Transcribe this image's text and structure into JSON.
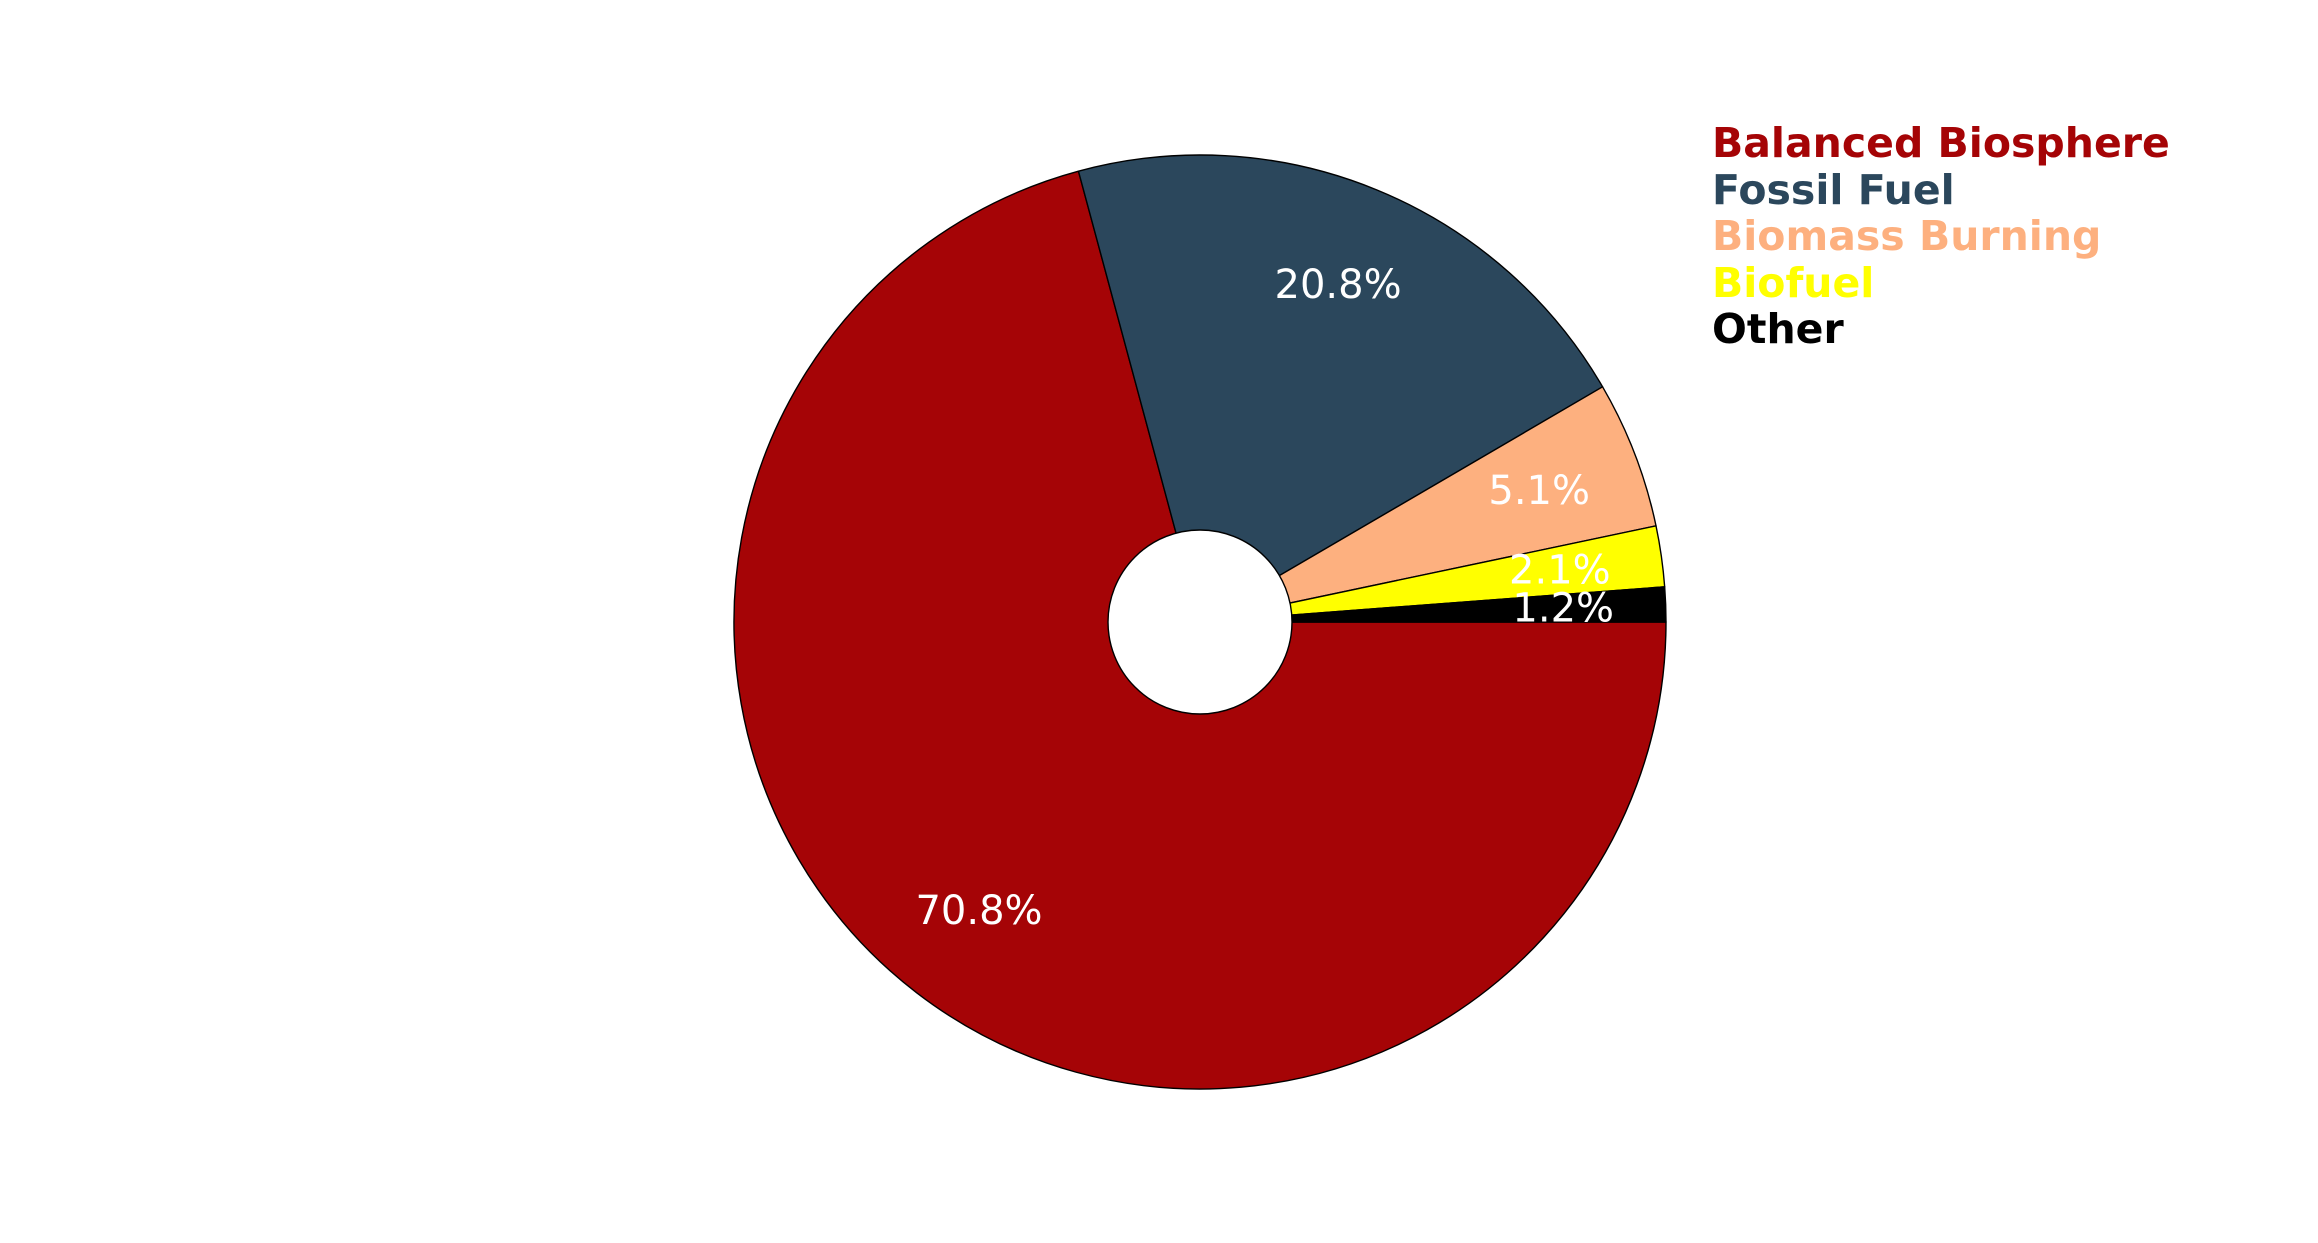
{
  "chart_data": {
    "type": "pie",
    "style": "donut",
    "title": "",
    "categories": [
      "Balanced Biosphere",
      "Fossil Fuel",
      "Biomass Burning",
      "Biofuel",
      "Other"
    ],
    "values": [
      70.8,
      20.8,
      5.1,
      2.1,
      1.2
    ],
    "value_labels": [
      "70.8%",
      "20.8%",
      "5.1%",
      "2.1%",
      "1.2%"
    ],
    "colors": [
      "#a50406",
      "#2b475c",
      "#fdb07f",
      "#ffff00",
      "#000000"
    ],
    "label_color": "#ffffff",
    "start_angle_deg": 0,
    "direction": "counterclockwise",
    "slice_edge_color": "#000000",
    "legend": {
      "placement": "top-right",
      "style": "colored-text",
      "entries": [
        "Balanced Biosphere",
        "Fossil Fuel",
        "Biomass Burning",
        "Biofuel",
        "Other"
      ]
    }
  }
}
